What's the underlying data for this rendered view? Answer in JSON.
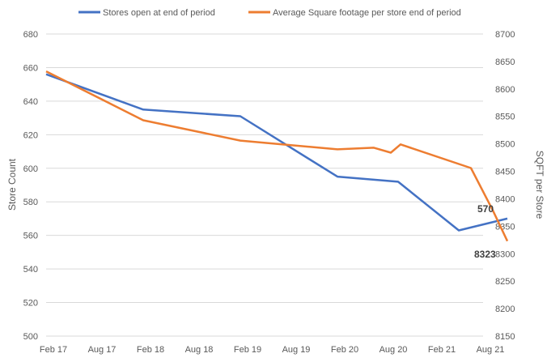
{
  "chart_data": {
    "type": "line",
    "title": "",
    "xlabel": "",
    "ylabel": "Store Count",
    "y2label": "SQFT per Store",
    "ylim": [
      500,
      680
    ],
    "y2lim": [
      8150,
      8700
    ],
    "yticks": [
      500,
      520,
      540,
      560,
      580,
      600,
      620,
      640,
      660,
      680
    ],
    "y2ticks": [
      8150,
      8200,
      8250,
      8300,
      8350,
      8400,
      8450,
      8500,
      8550,
      8600,
      8650,
      8700
    ],
    "categories": [
      "Feb 17",
      "Aug 17",
      "Feb 18",
      "Aug 18",
      "Feb 19",
      "Aug 19",
      "Feb 20",
      "Aug 20",
      "Feb 21",
      "Aug 21"
    ],
    "grid": true,
    "legend_position": "top",
    "series": [
      {
        "name": "Stores open at end of period",
        "axis": "left",
        "color": "#4472C4",
        "points": [
          {
            "x": 0,
            "y": 656
          },
          {
            "x": 2,
            "y": 635
          },
          {
            "x": 4,
            "y": 631
          },
          {
            "x": 6,
            "y": 595
          },
          {
            "x": 7.25,
            "y": 592
          },
          {
            "x": 8.5,
            "y": 563
          },
          {
            "x": 9.5,
            "y": 570
          }
        ],
        "end_label": "570"
      },
      {
        "name": "Average Square footage per store end of period",
        "axis": "right",
        "color": "#ED7D31",
        "points": [
          {
            "x": 0,
            "y": 8632
          },
          {
            "x": 2,
            "y": 8543
          },
          {
            "x": 4,
            "y": 8506
          },
          {
            "x": 6,
            "y": 8490
          },
          {
            "x": 6.75,
            "y": 8493
          },
          {
            "x": 7.1,
            "y": 8484
          },
          {
            "x": 7.3,
            "y": 8499
          },
          {
            "x": 8.75,
            "y": 8456
          },
          {
            "x": 9.2,
            "y": 8379
          },
          {
            "x": 9.5,
            "y": 8323
          }
        ],
        "end_label": "8323"
      }
    ]
  }
}
